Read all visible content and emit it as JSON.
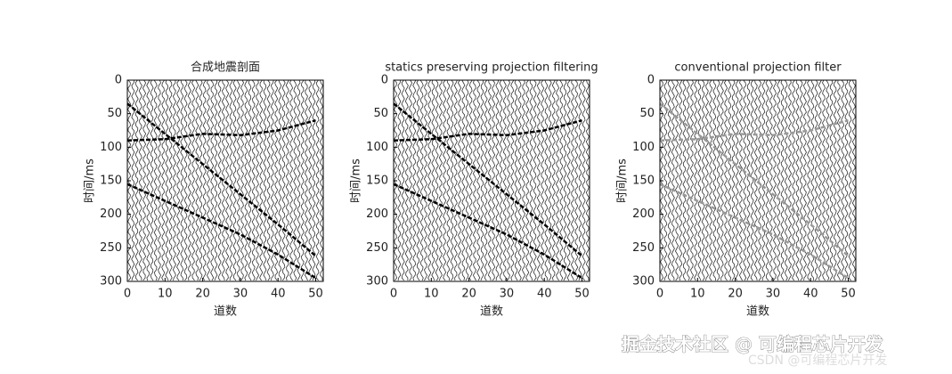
{
  "chart_data": [
    {
      "type": "wiggle",
      "title": "合成地震剖面",
      "x_label": "道数",
      "y_label": "时间/ms",
      "xlim": [
        0,
        52
      ],
      "ylim": [
        0,
        300
      ],
      "xticks": [
        0,
        10,
        20,
        30,
        40,
        50
      ],
      "yticks": [
        0,
        50,
        100,
        150,
        200,
        250,
        300
      ],
      "y_reversed": true,
      "series": [
        {
          "color": "#000000",
          "x": [
            0,
            10,
            20,
            30,
            40,
            50
          ],
          "values": [
            35,
            80,
            125,
            170,
            215,
            262
          ]
        },
        {
          "color": "#000000",
          "x": [
            0,
            10,
            20,
            30,
            40,
            50
          ],
          "values": [
            90,
            88,
            80,
            82,
            75,
            60
          ]
        },
        {
          "color": "#000000",
          "x": [
            0,
            10,
            20,
            30,
            40,
            50
          ],
          "values": [
            155,
            180,
            205,
            230,
            260,
            295
          ]
        }
      ]
    },
    {
      "type": "wiggle",
      "title": "statics preserving projection filtering",
      "x_label": "道数",
      "y_label": "时间/ms",
      "xlim": [
        0,
        52
      ],
      "ylim": [
        0,
        300
      ],
      "xticks": [
        0,
        10,
        20,
        30,
        40,
        50
      ],
      "yticks": [
        0,
        50,
        100,
        150,
        200,
        250,
        300
      ],
      "y_reversed": true,
      "series": [
        {
          "color": "#000000",
          "x": [
            0,
            10,
            20,
            30,
            40,
            50
          ],
          "values": [
            35,
            80,
            125,
            170,
            215,
            262
          ]
        },
        {
          "color": "#000000",
          "x": [
            0,
            10,
            20,
            30,
            40,
            50
          ],
          "values": [
            90,
            88,
            80,
            82,
            75,
            60
          ]
        },
        {
          "color": "#000000",
          "x": [
            0,
            10,
            20,
            30,
            40,
            50
          ],
          "values": [
            155,
            180,
            205,
            230,
            260,
            295
          ]
        }
      ]
    },
    {
      "type": "wiggle",
      "title": "conventional projection filter",
      "x_label": "道数",
      "y_label": "时间/ms",
      "xlim": [
        0,
        52
      ],
      "ylim": [
        0,
        300
      ],
      "xticks": [
        0,
        10,
        20,
        30,
        40,
        50
      ],
      "yticks": [
        0,
        50,
        100,
        150,
        200,
        250,
        300
      ],
      "y_reversed": true,
      "series": [
        {
          "color": "#999999",
          "x": [
            0,
            10,
            20,
            30,
            40,
            50
          ],
          "values": [
            35,
            80,
            125,
            170,
            215,
            262
          ]
        },
        {
          "color": "#999999",
          "x": [
            0,
            10,
            20,
            30,
            40,
            50
          ],
          "values": [
            90,
            88,
            80,
            82,
            75,
            60
          ]
        },
        {
          "color": "#999999",
          "x": [
            0,
            10,
            20,
            30,
            40,
            50
          ],
          "values": [
            155,
            180,
            205,
            230,
            260,
            295
          ]
        }
      ]
    }
  ],
  "watermark": "掘金技术社区 @ 可编程芯片开发",
  "watermark_faint": "CSDN @可编程芯片开发"
}
